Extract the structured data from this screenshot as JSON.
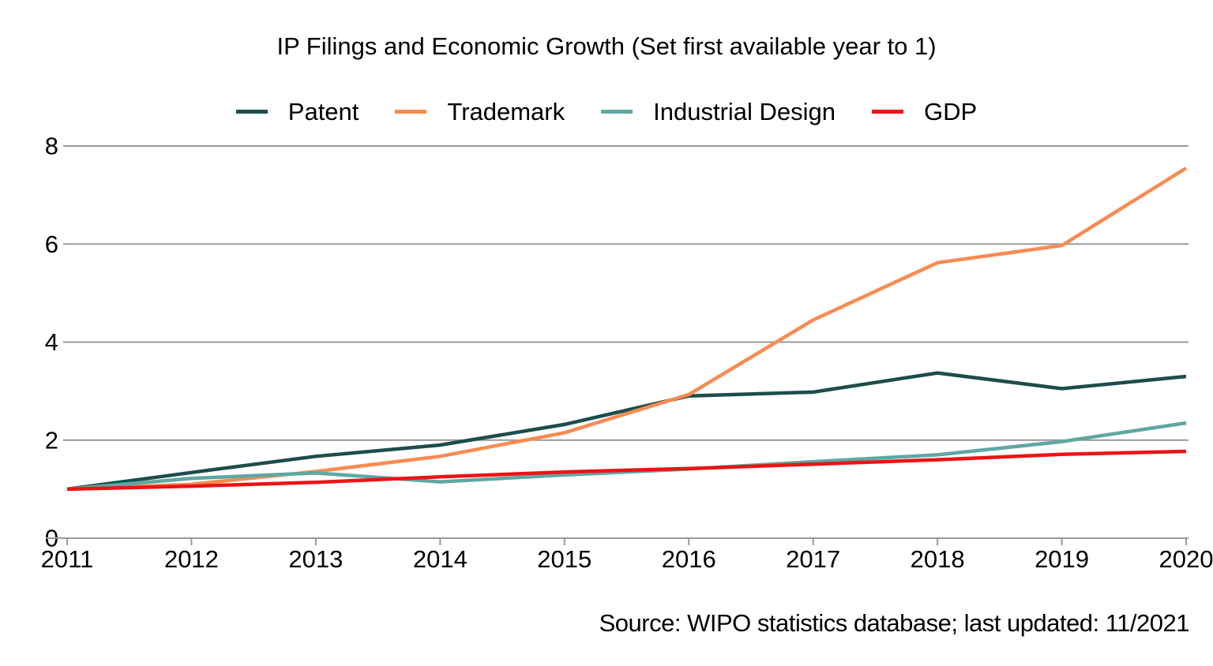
{
  "chart_data": {
    "type": "line",
    "title": "IP Filings and Economic Growth (Set first available year to 1)",
    "source": "Source: WIPO statistics database; last updated: 11/2021",
    "x": [
      2011,
      2012,
      2013,
      2014,
      2015,
      2016,
      2017,
      2018,
      2019,
      2020
    ],
    "yticks": [
      0,
      2,
      4,
      6,
      8
    ],
    "ylim": [
      0,
      8.6
    ],
    "grid": "horizontal",
    "legend_position": "top-center",
    "grid_color": "#9a9a9a",
    "series": [
      {
        "name": "Patent",
        "color": "#1d4d4d",
        "values": [
          1.0,
          1.34,
          1.67,
          1.9,
          2.32,
          2.9,
          2.98,
          3.37,
          3.05,
          3.3
        ]
      },
      {
        "name": "Trademark",
        "color": "#f98b51",
        "values": [
          1.0,
          1.1,
          1.36,
          1.67,
          2.15,
          2.93,
          4.45,
          5.62,
          5.97,
          7.55
        ]
      },
      {
        "name": "Industrial Design",
        "color": "#5fa7a3",
        "values": [
          1.0,
          1.22,
          1.33,
          1.15,
          1.29,
          1.41,
          1.56,
          1.7,
          1.97,
          2.35
        ]
      },
      {
        "name": "GDP",
        "color": "#ec1414",
        "values": [
          1.0,
          1.06,
          1.14,
          1.25,
          1.35,
          1.42,
          1.51,
          1.6,
          1.71,
          1.77
        ]
      }
    ]
  }
}
